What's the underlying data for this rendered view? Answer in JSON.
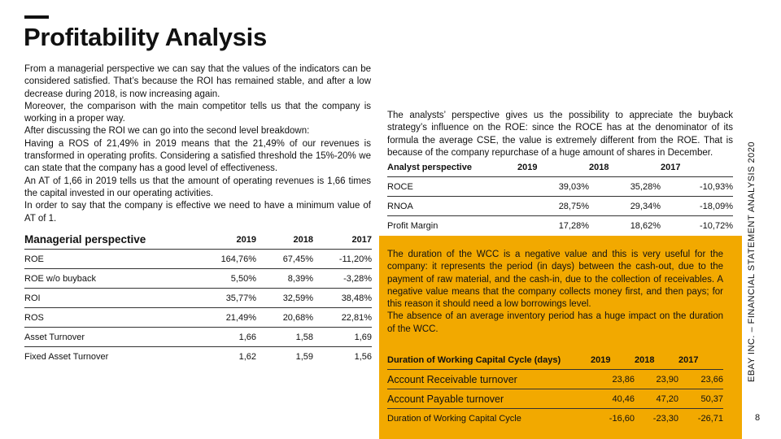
{
  "slide": {
    "title": "Profitability Analysis",
    "side_label": "EBAY INC. – FINANCIAL STATEMENT ANALYSIS 2020",
    "page_number": "8",
    "colors": {
      "accent": "#f2a900",
      "text": "#111111",
      "background": "#ffffff"
    }
  },
  "left_text": {
    "paragraphs": [
      "From a managerial perspective we can say that the values of the indicators can be considered satisfied. That’s because the ROI has remained stable, and after a low decrease during 2018, is now increasing again.",
      "Moreover, the comparison with the main competitor tells us that the company is working in a proper way.",
      "After discussing the ROI we can go into the second level breakdown:",
      "Having a ROS of 21,49% in 2019 means that the 21,49% of our revenues is transformed in operating profits. Considering a satisfied threshold the 15%-20% we can state that the company has a good level of effectiveness.",
      "An AT of 1,66 in 2019 tells us that the amount of operating revenues is 1,66 times the capital invested in our operating activities.",
      "In order to say that the company is effective we need to have a minimum value of AT of 1."
    ]
  },
  "managerial_table": {
    "header": [
      "Managerial perspective",
      "2019",
      "2018",
      "2017"
    ],
    "rows": [
      {
        "label": "ROE",
        "v2019": "164,76%",
        "v2018": "67,45%",
        "v2017": "-11,20%"
      },
      {
        "label": "ROE w/o buyback",
        "v2019": "5,50%",
        "v2018": "8,39%",
        "v2017": "-3,28%"
      },
      {
        "label": "ROI",
        "v2019": "35,77%",
        "v2018": "32,59%",
        "v2017": "38,48%"
      },
      {
        "label": "ROS",
        "v2019": "21,49%",
        "v2018": "20,68%",
        "v2017": "22,81%"
      },
      {
        "label": "Asset Turnover",
        "v2019": "1,66",
        "v2018": "1,58",
        "v2017": "1,69"
      },
      {
        "label": "Fixed Asset Turnover",
        "v2019": "1,62",
        "v2018": "1,59",
        "v2017": "1,56"
      }
    ]
  },
  "right_text": {
    "paragraph": "The analysts’ perspective gives us the possibility to appreciate the buyback strategy’s influence on the ROE: since the ROCE has at the denominator of its formula the average CSE, the value is extremely different from the ROE. That is because of the company repurchase of a huge amount of shares in December."
  },
  "analyst_table": {
    "header": [
      "Analyst perspective",
      "2019",
      "2018",
      "2017"
    ],
    "rows": [
      {
        "label": "ROCE",
        "v2019": "39,03%",
        "v2018": "35,28%",
        "v2017": "-10,93%"
      },
      {
        "label": "RNOA",
        "v2019": "28,75%",
        "v2018": "29,34%",
        "v2017": "-18,09%"
      },
      {
        "label": "Profit Margin",
        "v2019": "17,28%",
        "v2018": "18,62%",
        "v2017": "-10,72%"
      }
    ]
  },
  "orange_text": {
    "paragraphs": [
      "The duration of the WCC is a negative value and this is very useful for the company: it represents the period (in days) between the cash-out, due to the payment of raw material, and the cash-in, due to the collection of receivables. A negative value means that the company collects money first, and then pays; for this reason it should need a low borrowings level.",
      "The absence of an average inventory period has a huge impact on the duration of the WCC."
    ]
  },
  "wcc_table": {
    "header": [
      "Duration of Working Capital Cycle (days)",
      "2019",
      "2018",
      "2017"
    ],
    "rows": [
      {
        "label": "Account Receivable turnover",
        "v2019": "23,86",
        "v2018": "23,90",
        "v2017": "23,66"
      },
      {
        "label": "Account Payable turnover",
        "v2019": "40,46",
        "v2018": "47,20",
        "v2017": "50,37"
      },
      {
        "label": "Duration of Working Capital Cycle",
        "v2019": "-16,60",
        "v2018": "-23,30",
        "v2017": "-26,71"
      }
    ]
  }
}
